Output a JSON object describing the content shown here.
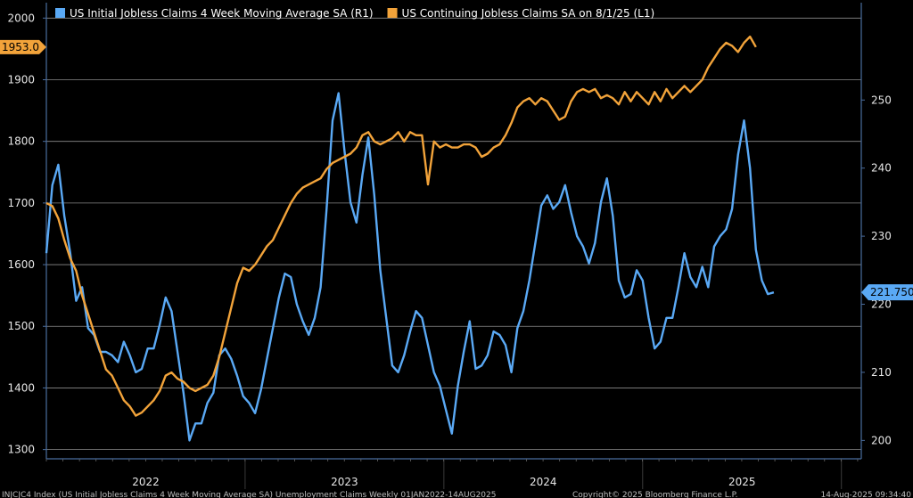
{
  "chart_data": {
    "type": "line",
    "colors": {
      "initial": "#5aa9f5",
      "continuing": "#f2a33a",
      "grid": "#8a8a8a",
      "axis": "#4a6d9e"
    },
    "legend": [
      {
        "label": "US Initial Jobless Claims 4 Week Moving Average SA  (R1)",
        "color": "#5aa9f5"
      },
      {
        "label": "US Continuing Jobless Claims SA  on 8/1/25  (L1)",
        "color": "#f2a33a"
      }
    ],
    "left_axis": {
      "range": [
        1285,
        2025
      ],
      "ticks": [
        2000,
        1900,
        1800,
        1700,
        1600,
        1500,
        1400,
        1300
      ]
    },
    "right_axis": {
      "range": [
        197.3,
        264.3
      ],
      "ticks": [
        250,
        240,
        230,
        220,
        210,
        200
      ]
    },
    "x_axis": {
      "range": [
        2021.6,
        2025.7
      ],
      "labels": [
        "2022",
        "2023",
        "2024",
        "2025"
      ],
      "label_positions": [
        2022.1,
        2023.1,
        2024.1,
        2025.1
      ],
      "separators": [
        2022.6,
        2023.6,
        2024.6,
        2025.6
      ]
    },
    "last_value_left": "1953.0",
    "last_value_right": "221.750",
    "series": [
      {
        "name": "US Initial Jobless Claims 4 Week Moving Average SA (R1)",
        "axis": "right",
        "points": [
          [
            2021.6,
            227.5
          ],
          [
            2021.63,
            237.5
          ],
          [
            2021.66,
            240.5
          ],
          [
            2021.69,
            233.0
          ],
          [
            2021.72,
            227.5
          ],
          [
            2021.75,
            220.5
          ],
          [
            2021.78,
            222.5
          ],
          [
            2021.81,
            216.5
          ],
          [
            2021.84,
            215.5
          ],
          [
            2021.87,
            213.0
          ],
          [
            2021.9,
            213.0
          ],
          [
            2021.93,
            212.5
          ],
          [
            2021.96,
            211.5
          ],
          [
            2021.99,
            214.5
          ],
          [
            2022.02,
            212.5
          ],
          [
            2022.05,
            210.0
          ],
          [
            2022.08,
            210.5
          ],
          [
            2022.11,
            213.5
          ],
          [
            2022.14,
            213.5
          ],
          [
            2022.17,
            217.0
          ],
          [
            2022.2,
            221.0
          ],
          [
            2022.23,
            219.0
          ],
          [
            2022.26,
            213.0
          ],
          [
            2022.29,
            207.0
          ],
          [
            2022.32,
            200.0
          ],
          [
            2022.35,
            202.5
          ],
          [
            2022.38,
            202.5
          ],
          [
            2022.41,
            205.5
          ],
          [
            2022.44,
            207.0
          ],
          [
            2022.47,
            212.5
          ],
          [
            2022.5,
            213.5
          ],
          [
            2022.53,
            212.0
          ],
          [
            2022.56,
            209.5
          ],
          [
            2022.59,
            206.5
          ],
          [
            2022.62,
            205.5
          ],
          [
            2022.65,
            204.0
          ],
          [
            2022.68,
            207.5
          ],
          [
            2022.71,
            212.0
          ],
          [
            2022.74,
            216.5
          ],
          [
            2022.77,
            221.0
          ],
          [
            2022.8,
            224.5
          ],
          [
            2022.83,
            224.0
          ],
          [
            2022.86,
            220.0
          ],
          [
            2022.89,
            217.5
          ],
          [
            2022.92,
            215.5
          ],
          [
            2022.95,
            218.0
          ],
          [
            2022.98,
            222.5
          ],
          [
            2023.01,
            234.0
          ],
          [
            2023.04,
            247.0
          ],
          [
            2023.07,
            251.0
          ],
          [
            2023.1,
            242.5
          ],
          [
            2023.13,
            235.0
          ],
          [
            2023.16,
            232.0
          ],
          [
            2023.19,
            239.0
          ],
          [
            2023.22,
            244.5
          ],
          [
            2023.25,
            236.0
          ],
          [
            2023.28,
            225.0
          ],
          [
            2023.31,
            218.0
          ],
          [
            2023.34,
            211.0
          ],
          [
            2023.37,
            210.0
          ],
          [
            2023.4,
            212.5
          ],
          [
            2023.43,
            216.0
          ],
          [
            2023.46,
            219.0
          ],
          [
            2023.49,
            218.0
          ],
          [
            2023.52,
            214.0
          ],
          [
            2023.55,
            210.0
          ],
          [
            2023.58,
            208.0
          ],
          [
            2023.61,
            204.5
          ],
          [
            2023.64,
            201.0
          ],
          [
            2023.67,
            208.0
          ],
          [
            2023.7,
            213.0
          ],
          [
            2023.73,
            217.5
          ],
          [
            2023.76,
            210.5
          ],
          [
            2023.79,
            211.0
          ],
          [
            2023.82,
            212.5
          ],
          [
            2023.85,
            216.0
          ],
          [
            2023.88,
            215.5
          ],
          [
            2023.91,
            214.0
          ],
          [
            2023.94,
            210.0
          ],
          [
            2023.97,
            216.5
          ],
          [
            2024.0,
            219.0
          ],
          [
            2024.03,
            223.5
          ],
          [
            2024.06,
            229.0
          ],
          [
            2024.09,
            234.5
          ],
          [
            2024.12,
            236.0
          ],
          [
            2024.15,
            234.0
          ],
          [
            2024.18,
            235.0
          ],
          [
            2024.21,
            237.5
          ],
          [
            2024.24,
            233.5
          ],
          [
            2024.27,
            230.0
          ],
          [
            2024.3,
            228.5
          ],
          [
            2024.33,
            226.0
          ],
          [
            2024.36,
            229.0
          ],
          [
            2024.39,
            235.0
          ],
          [
            2024.42,
            238.5
          ],
          [
            2024.45,
            233.0
          ],
          [
            2024.48,
            223.5
          ],
          [
            2024.51,
            221.0
          ],
          [
            2024.54,
            221.5
          ],
          [
            2024.57,
            225.0
          ],
          [
            2024.6,
            223.5
          ],
          [
            2024.63,
            218.0
          ],
          [
            2024.66,
            213.5
          ],
          [
            2024.69,
            214.5
          ],
          [
            2024.72,
            218.0
          ],
          [
            2024.75,
            218.0
          ],
          [
            2024.78,
            222.5
          ],
          [
            2024.81,
            227.5
          ],
          [
            2024.84,
            224.0
          ],
          [
            2024.87,
            222.5
          ],
          [
            2024.9,
            225.5
          ],
          [
            2024.93,
            222.5
          ],
          [
            2024.96,
            228.5
          ],
          [
            2024.99,
            230.0
          ],
          [
            2025.02,
            231.0
          ],
          [
            2025.05,
            234.0
          ],
          [
            2025.08,
            242.0
          ],
          [
            2025.11,
            247.0
          ],
          [
            2025.14,
            240.0
          ],
          [
            2025.17,
            228.0
          ],
          [
            2025.2,
            223.5
          ],
          [
            2025.23,
            221.5
          ],
          [
            2025.26,
            221.75
          ]
        ]
      },
      {
        "name": "US Continuing Jobless Claims SA on 8/1/25 (L1)",
        "axis": "left",
        "points": [
          [
            2021.6,
            1700
          ],
          [
            2021.63,
            1695
          ],
          [
            2021.66,
            1675
          ],
          [
            2021.69,
            1640
          ],
          [
            2021.72,
            1610
          ],
          [
            2021.75,
            1590
          ],
          [
            2021.78,
            1550
          ],
          [
            2021.81,
            1520
          ],
          [
            2021.84,
            1490
          ],
          [
            2021.87,
            1460
          ],
          [
            2021.9,
            1430
          ],
          [
            2021.93,
            1420
          ],
          [
            2021.96,
            1400
          ],
          [
            2021.99,
            1380
          ],
          [
            2022.02,
            1370
          ],
          [
            2022.05,
            1355
          ],
          [
            2022.08,
            1360
          ],
          [
            2022.11,
            1370
          ],
          [
            2022.14,
            1380
          ],
          [
            2022.17,
            1395
          ],
          [
            2022.2,
            1420
          ],
          [
            2022.23,
            1425
          ],
          [
            2022.26,
            1415
          ],
          [
            2022.29,
            1410
          ],
          [
            2022.32,
            1400
          ],
          [
            2022.35,
            1395
          ],
          [
            2022.38,
            1400
          ],
          [
            2022.41,
            1405
          ],
          [
            2022.44,
            1420
          ],
          [
            2022.47,
            1450
          ],
          [
            2022.5,
            1490
          ],
          [
            2022.53,
            1530
          ],
          [
            2022.56,
            1570
          ],
          [
            2022.59,
            1595
          ],
          [
            2022.62,
            1590
          ],
          [
            2022.65,
            1600
          ],
          [
            2022.68,
            1615
          ],
          [
            2022.71,
            1630
          ],
          [
            2022.74,
            1640
          ],
          [
            2022.77,
            1660
          ],
          [
            2022.8,
            1680
          ],
          [
            2022.83,
            1700
          ],
          [
            2022.86,
            1715
          ],
          [
            2022.89,
            1725
          ],
          [
            2022.92,
            1730
          ],
          [
            2022.95,
            1735
          ],
          [
            2022.98,
            1740
          ],
          [
            2023.01,
            1755
          ],
          [
            2023.04,
            1765
          ],
          [
            2023.07,
            1770
          ],
          [
            2023.1,
            1775
          ],
          [
            2023.13,
            1780
          ],
          [
            2023.16,
            1790
          ],
          [
            2023.19,
            1810
          ],
          [
            2023.22,
            1815
          ],
          [
            2023.25,
            1800
          ],
          [
            2023.28,
            1795
          ],
          [
            2023.31,
            1800
          ],
          [
            2023.34,
            1805
          ],
          [
            2023.37,
            1815
          ],
          [
            2023.4,
            1800
          ],
          [
            2023.43,
            1815
          ],
          [
            2023.46,
            1810
          ],
          [
            2023.49,
            1810
          ],
          [
            2023.52,
            1730
          ],
          [
            2023.55,
            1800
          ],
          [
            2023.58,
            1790
          ],
          [
            2023.61,
            1795
          ],
          [
            2023.64,
            1790
          ],
          [
            2023.67,
            1790
          ],
          [
            2023.7,
            1795
          ],
          [
            2023.73,
            1795
          ],
          [
            2023.76,
            1790
          ],
          [
            2023.79,
            1775
          ],
          [
            2023.82,
            1780
          ],
          [
            2023.85,
            1790
          ],
          [
            2023.88,
            1795
          ],
          [
            2023.91,
            1810
          ],
          [
            2023.94,
            1830
          ],
          [
            2023.97,
            1855
          ],
          [
            2024.0,
            1865
          ],
          [
            2024.03,
            1870
          ],
          [
            2024.06,
            1860
          ],
          [
            2024.09,
            1870
          ],
          [
            2024.12,
            1865
          ],
          [
            2024.15,
            1850
          ],
          [
            2024.18,
            1835
          ],
          [
            2024.21,
            1840
          ],
          [
            2024.24,
            1865
          ],
          [
            2024.27,
            1880
          ],
          [
            2024.3,
            1885
          ],
          [
            2024.33,
            1880
          ],
          [
            2024.36,
            1885
          ],
          [
            2024.39,
            1870
          ],
          [
            2024.42,
            1875
          ],
          [
            2024.45,
            1870
          ],
          [
            2024.48,
            1860
          ],
          [
            2024.51,
            1880
          ],
          [
            2024.54,
            1865
          ],
          [
            2024.57,
            1880
          ],
          [
            2024.6,
            1870
          ],
          [
            2024.63,
            1860
          ],
          [
            2024.66,
            1880
          ],
          [
            2024.69,
            1865
          ],
          [
            2024.72,
            1885
          ],
          [
            2024.75,
            1870
          ],
          [
            2024.78,
            1880
          ],
          [
            2024.81,
            1890
          ],
          [
            2024.84,
            1880
          ],
          [
            2024.87,
            1890
          ],
          [
            2024.9,
            1900
          ],
          [
            2024.93,
            1920
          ],
          [
            2024.96,
            1935
          ],
          [
            2024.99,
            1950
          ],
          [
            2025.02,
            1960
          ],
          [
            2025.05,
            1955
          ],
          [
            2025.08,
            1945
          ],
          [
            2025.11,
            1960
          ],
          [
            2025.14,
            1970
          ],
          [
            2025.17,
            1953
          ]
        ]
      }
    ]
  },
  "footer": {
    "source": "INJCJC4 Index (US Initial Jobless Claims 4 Week Moving Average SA) Unemployment Claims Weekly 01JAN2022-14AUG2025",
    "copyright": "Copyright© 2025 Bloomberg Finance L.P.",
    "timestamp": "14-Aug-2025 09:34:40"
  }
}
